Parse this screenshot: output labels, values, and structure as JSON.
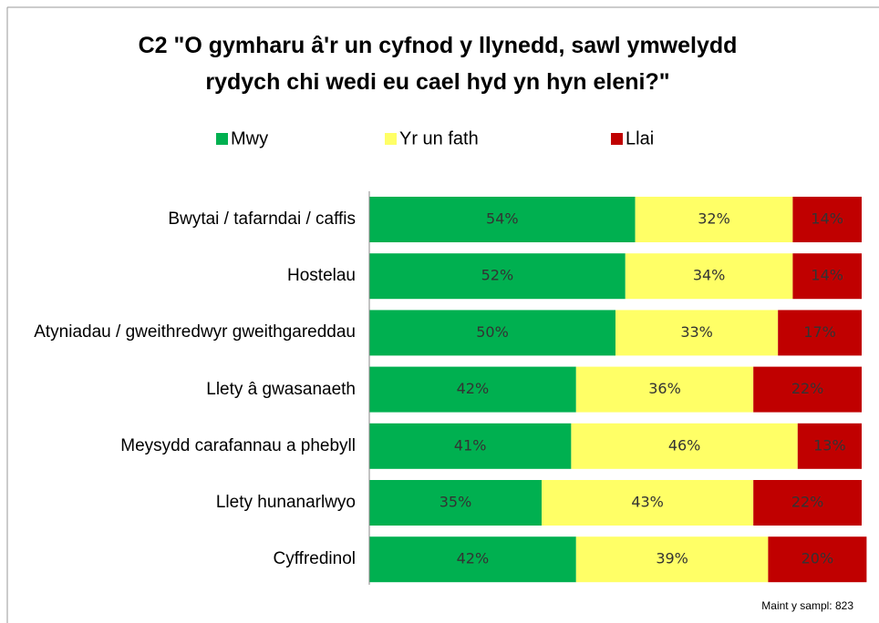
{
  "chart_data": {
    "type": "stacked_barh",
    "title": "C2 \"O gymharu â'r un cyfnod y llynedd, sawl ymwelydd rydych chi wedi eu cael hyd yn hyn eleni?\"",
    "categories": [
      "Bwytai / tafarndai / caffis",
      "Hostelau",
      "Atyniadau / gweithredwyr gweithgareddau",
      "Llety â gwasanaeth",
      "Meysydd carafannau a phebyll",
      "Llety hunanarlwyo",
      "Cyffredinol"
    ],
    "series": [
      {
        "name": "Mwy",
        "color": "#00b050",
        "values": [
          54,
          52,
          50,
          42,
          41,
          35,
          42
        ],
        "value_labels": [
          "54%",
          "52%",
          "50%",
          "42%",
          "41%",
          "35%",
          "42%"
        ]
      },
      {
        "name": "Yr un fath",
        "color": "#ffff66",
        "values": [
          32,
          34,
          33,
          36,
          46,
          43,
          39
        ],
        "value_labels": [
          "32%",
          "34%",
          "33%",
          "36%",
          "46%",
          "43%",
          "39%"
        ]
      },
      {
        "name": "Llai",
        "color": "#c00000",
        "values": [
          14,
          14,
          17,
          22,
          13,
          22,
          20
        ],
        "value_labels": [
          "14%",
          "14%",
          "17%",
          "22%",
          "13%",
          "22%",
          "20%"
        ]
      }
    ],
    "annotation": "Maint y sampl: 823"
  }
}
